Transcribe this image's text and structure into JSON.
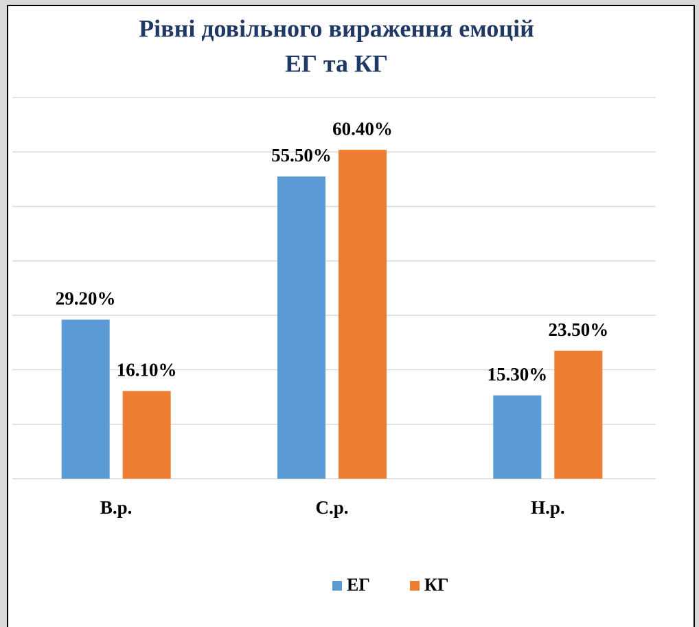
{
  "chart_data": {
    "type": "bar",
    "title": [
      "Рівні  довільного вираження емоцій",
      "ЕГ та КГ"
    ],
    "categories": [
      "В.р.",
      "С.р.",
      "Н.р."
    ],
    "series": [
      {
        "name": "ЕГ",
        "color": "#5b9bd5",
        "values": [
          29.2,
          55.5,
          15.3
        ],
        "value_labels": [
          "29.20%",
          "55.50%",
          "15.30%"
        ]
      },
      {
        "name": "КГ",
        "color": "#ed7d31",
        "values": [
          16.1,
          60.4,
          23.5
        ],
        "value_labels": [
          "16.10%",
          "60.40%",
          "23.50%"
        ]
      }
    ],
    "ylim": [
      0,
      70
    ],
    "yticks": [
      0,
      10,
      20,
      30,
      40,
      50,
      60,
      70
    ],
    "grid": true,
    "legend": "bottom"
  }
}
